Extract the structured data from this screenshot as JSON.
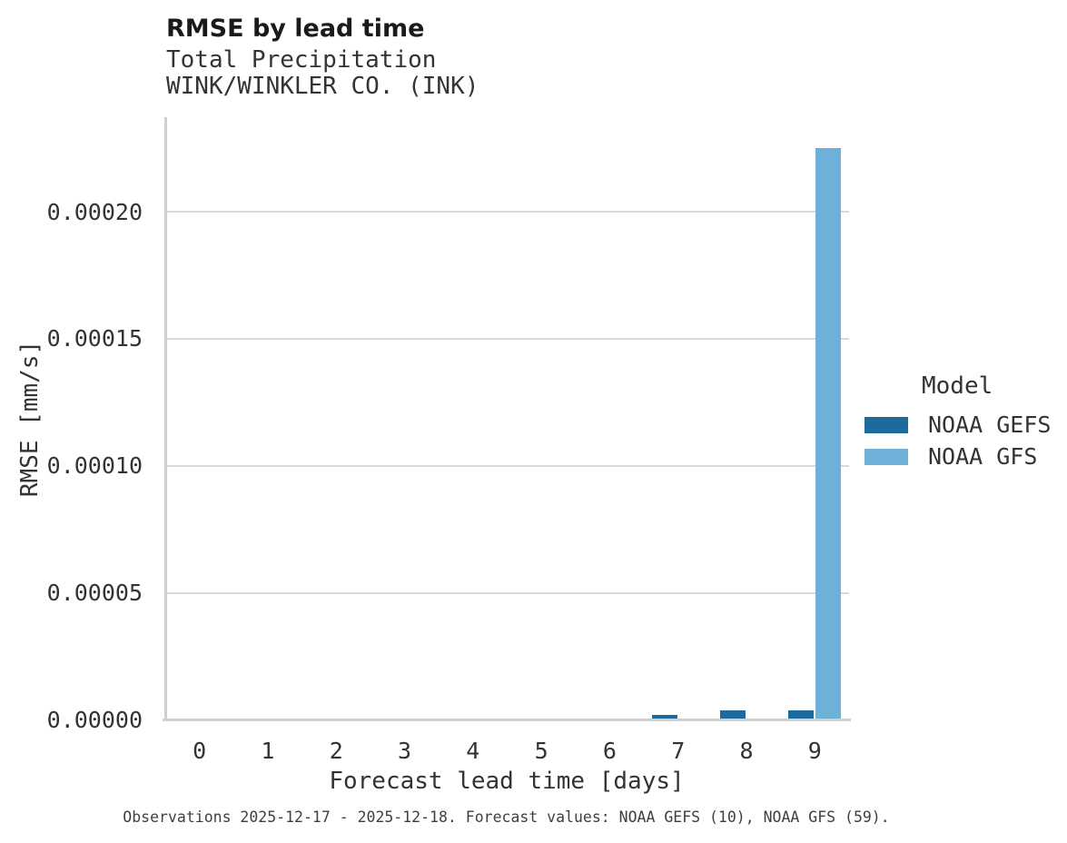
{
  "header": {
    "title": "RMSE by lead time",
    "subtitle1": "Total Precipitation",
    "subtitle2": "WINK/WINKLER CO. (INK)"
  },
  "caption": "Observations 2025-12-17 - 2025-12-18. Forecast values: NOAA GEFS (10), NOAA GFS (59).",
  "chart_data": {
    "type": "bar",
    "title": "RMSE by lead time",
    "subtitle": [
      "Total Precipitation",
      "WINK/WINKLER CO. (INK)"
    ],
    "xlabel": "Forecast lead time [days]",
    "ylabel": "RMSE [mm/s]",
    "categories": [
      "0",
      "1",
      "2",
      "3",
      "4",
      "5",
      "6",
      "7",
      "8",
      "9"
    ],
    "series": [
      {
        "name": "NOAA GEFS",
        "color": "#1b6c9c",
        "values": [
          0,
          0,
          0,
          0,
          0,
          0,
          0,
          2.1e-06,
          3.9e-06,
          3.7e-06
        ]
      },
      {
        "name": "NOAA GFS",
        "color": "#6db1d8",
        "values": [
          0,
          0,
          0,
          0,
          0,
          0,
          0,
          0,
          0,
          0.000225
        ]
      }
    ],
    "ylim": [
      0,
      0.000237
    ],
    "yticks": [
      0,
      5e-05,
      0.0001,
      0.00015,
      0.0002
    ],
    "ytick_labels": [
      "0.00000",
      "0.00005",
      "0.00010",
      "0.00015",
      "0.00020"
    ],
    "legend_title": "Model",
    "legend_position": "right",
    "grid": "horizontal",
    "background": "#ffffff"
  }
}
